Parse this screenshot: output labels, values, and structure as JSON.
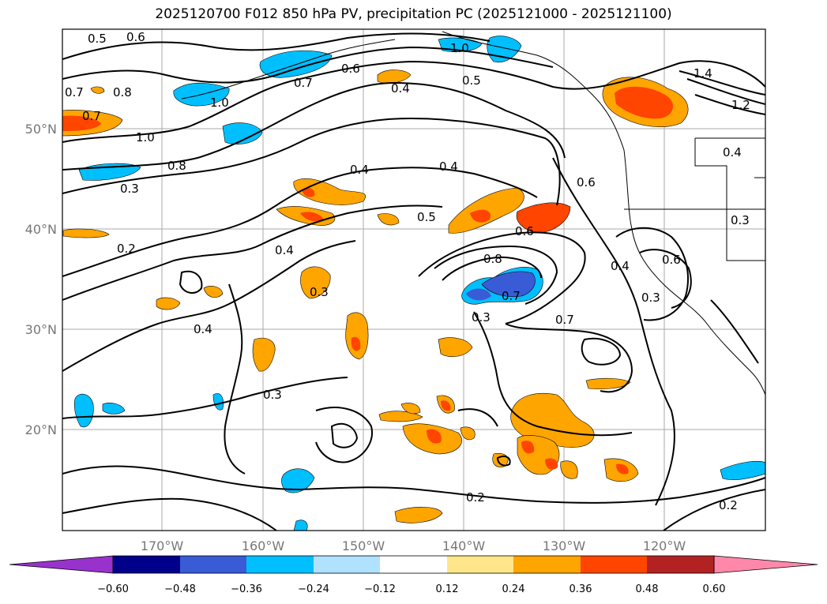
{
  "title": "2025120700 F012 850 hPa PV, precipitation PC (2025121000 - 2025121100)",
  "map": {
    "lat_labels": [
      "50°N",
      "40°N",
      "30°N",
      "20°N"
    ],
    "lon_labels": [
      "170°W",
      "160°W",
      "150°W",
      "140°W",
      "130°W",
      "120°W"
    ],
    "grid": true
  },
  "contour_labels": [
    "0.5",
    "0.6",
    "0.7",
    "0.8",
    "0.7",
    "1.0",
    "0.7",
    "0.6",
    "1.0",
    "0.4",
    "0.5",
    "1.4",
    "1.2",
    "1.0",
    "0.8",
    "0.3",
    "0.4",
    "0.4",
    "0.4",
    "0.6",
    "0.2",
    "0.4",
    "0.5",
    "0.6",
    "0.8",
    "0.7",
    "0.4",
    "0.6",
    "0.3",
    "0.3",
    "0.3",
    "0.4",
    "0.3",
    "0.7",
    "0.3",
    "0.2",
    "0.2"
  ],
  "colorbar": {
    "ticks": [
      "−0.60",
      "−0.48",
      "−0.36",
      "−0.24",
      "−0.12",
      "0.12",
      "0.24",
      "0.36",
      "0.48",
      "0.60"
    ],
    "colors": [
      "#9932cc",
      "#00008b",
      "#3a5bd6",
      "#00bfff",
      "#b0e2ff",
      "#ffffff",
      "#ffe68a",
      "#ffa500",
      "#ff4500",
      "#b22222",
      "#ff88aa"
    ]
  },
  "colors": {
    "orange": "#ffa500",
    "red": "#ff4500",
    "cyan": "#00bfff",
    "blue": "#3a5bd6"
  }
}
